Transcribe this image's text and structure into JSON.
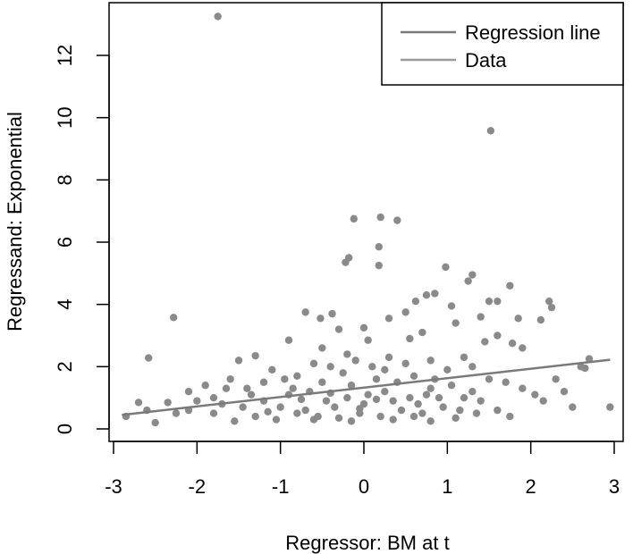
{
  "chart_data": {
    "type": "scatter",
    "title": "",
    "xlabel": "Regressor: BM at t",
    "ylabel": "Regressand: Exponential",
    "xlim": [
      -3,
      3
    ],
    "ylim": [
      0,
      13.5
    ],
    "xticks": [
      -3,
      -2,
      -1,
      0,
      1,
      2,
      3
    ],
    "yticks": [
      0,
      2,
      4,
      6,
      8,
      10,
      12
    ],
    "grid": false,
    "legend": {
      "placement": "top-right",
      "entries": [
        "Regression line",
        "Data"
      ]
    },
    "regression_line": {
      "x": [
        -2.9,
        2.95
      ],
      "y": [
        0.45,
        2.22
      ]
    },
    "series": [
      {
        "name": "Data",
        "color": "#8a8a8a",
        "points": [
          [
            -1.75,
            13.25
          ],
          [
            1.52,
            9.58
          ],
          [
            -0.12,
            6.75
          ],
          [
            0.2,
            6.8
          ],
          [
            0.4,
            6.7
          ],
          [
            0.18,
            5.85
          ],
          [
            0.18,
            5.25
          ],
          [
            -0.22,
            5.35
          ],
          [
            -0.18,
            5.5
          ],
          [
            -0.52,
            3.55
          ],
          [
            -0.38,
            3.7
          ],
          [
            -2.28,
            3.58
          ],
          [
            -2.58,
            2.28
          ],
          [
            -2.85,
            0.4
          ],
          [
            -2.7,
            0.85
          ],
          [
            -2.6,
            0.6
          ],
          [
            -2.5,
            0.2
          ],
          [
            -2.35,
            0.85
          ],
          [
            -2.25,
            0.5
          ],
          [
            0.98,
            5.2
          ],
          [
            1.3,
            4.95
          ],
          [
            1.25,
            4.75
          ],
          [
            0.85,
            4.35
          ],
          [
            0.75,
            4.3
          ],
          [
            0.62,
            4.1
          ],
          [
            0.5,
            3.75
          ],
          [
            1.05,
            3.95
          ],
          [
            1.5,
            4.1
          ],
          [
            1.6,
            4.1
          ],
          [
            1.75,
            4.6
          ],
          [
            1.85,
            3.55
          ],
          [
            2.22,
            4.1
          ],
          [
            2.25,
            3.9
          ],
          [
            2.12,
            3.5
          ],
          [
            1.78,
            2.75
          ],
          [
            2.6,
            2.0
          ],
          [
            2.65,
            1.95
          ],
          [
            2.7,
            2.25
          ],
          [
            2.95,
            0.7
          ],
          [
            2.5,
            0.7
          ],
          [
            2.3,
            1.6
          ],
          [
            2.4,
            1.2
          ],
          [
            -0.9,
            2.85
          ],
          [
            -0.7,
            3.75
          ],
          [
            -0.3,
            3.2
          ],
          [
            0.0,
            3.25
          ],
          [
            0.3,
            3.55
          ],
          [
            0.05,
            2.85
          ],
          [
            0.55,
            2.9
          ],
          [
            0.7,
            3.1
          ],
          [
            1.1,
            3.4
          ],
          [
            1.4,
            3.6
          ],
          [
            1.6,
            3.0
          ],
          [
            1.9,
            2.6
          ],
          [
            1.2,
            2.3
          ],
          [
            1.45,
            2.8
          ],
          [
            -0.5,
            2.6
          ],
          [
            -0.2,
            2.4
          ],
          [
            -1.5,
            2.2
          ],
          [
            -1.3,
            2.35
          ],
          [
            -1.1,
            1.9
          ],
          [
            -1.6,
            1.6
          ],
          [
            -1.9,
            1.4
          ],
          [
            -2.1,
            1.2
          ],
          [
            -1.8,
            1.0
          ],
          [
            -2.0,
            0.9
          ],
          [
            -1.4,
            1.3
          ],
          [
            -1.2,
            1.5
          ],
          [
            -0.95,
            1.6
          ],
          [
            -0.8,
            1.7
          ],
          [
            -0.6,
            2.1
          ],
          [
            -0.4,
            2.0
          ],
          [
            -0.1,
            2.2
          ],
          [
            0.1,
            2.0
          ],
          [
            0.3,
            2.3
          ],
          [
            0.5,
            2.1
          ],
          [
            0.8,
            2.2
          ],
          [
            1.0,
            1.9
          ],
          [
            1.3,
            2.0
          ],
          [
            1.5,
            1.6
          ],
          [
            1.7,
            1.5
          ],
          [
            1.9,
            1.3
          ],
          [
            2.05,
            1.1
          ],
          [
            2.15,
            0.9
          ],
          [
            1.75,
            0.4
          ],
          [
            1.6,
            0.6
          ],
          [
            1.4,
            0.9
          ],
          [
            1.2,
            1.0
          ],
          [
            0.95,
            0.7
          ],
          [
            0.7,
            0.5
          ],
          [
            0.45,
            0.6
          ],
          [
            0.2,
            0.4
          ],
          [
            -0.05,
            0.5
          ],
          [
            -0.3,
            0.35
          ],
          [
            -0.55,
            0.4
          ],
          [
            -0.8,
            0.5
          ],
          [
            -1.05,
            0.3
          ],
          [
            -1.3,
            0.4
          ],
          [
            -1.55,
            0.25
          ],
          [
            -1.8,
            0.5
          ],
          [
            -2.1,
            0.6
          ],
          [
            -1.7,
            0.8
          ],
          [
            -1.45,
            0.7
          ],
          [
            -1.2,
            0.9
          ],
          [
            -0.9,
            1.1
          ],
          [
            -0.65,
            1.2
          ],
          [
            -0.45,
            0.9
          ],
          [
            -0.2,
            1.0
          ],
          [
            0.05,
            1.1
          ],
          [
            0.25,
            1.2
          ],
          [
            0.55,
            1.0
          ],
          [
            0.8,
            1.3
          ],
          [
            1.05,
            1.4
          ],
          [
            1.3,
            1.2
          ],
          [
            -0.7,
            0.6
          ],
          [
            -0.35,
            0.7
          ],
          [
            0.0,
            0.8
          ],
          [
            0.35,
            0.9
          ],
          [
            0.65,
            0.8
          ],
          [
            0.9,
            1.0
          ],
          [
            1.15,
            0.6
          ],
          [
            0.4,
            1.5
          ],
          [
            0.15,
            1.6
          ],
          [
            -0.15,
            1.4
          ],
          [
            -0.5,
            1.5
          ],
          [
            -0.85,
            1.3
          ],
          [
            0.6,
            1.7
          ],
          [
            0.85,
            1.6
          ],
          [
            -0.25,
            1.8
          ],
          [
            0.25,
            1.9
          ],
          [
            -1.0,
            0.7
          ],
          [
            -0.6,
            0.3
          ],
          [
            -0.15,
            0.25
          ],
          [
            0.35,
            0.3
          ],
          [
            0.8,
            0.25
          ],
          [
            1.1,
            0.35
          ],
          [
            -1.35,
            1.1
          ],
          [
            -1.65,
            1.3
          ],
          [
            -0.75,
            0.95
          ],
          [
            -0.05,
            0.65
          ],
          [
            0.6,
            0.4
          ],
          [
            1.35,
            0.5
          ],
          [
            -0.4,
            1.15
          ],
          [
            0.15,
            0.95
          ],
          [
            0.75,
            1.1
          ],
          [
            -1.15,
            0.55
          ]
        ]
      }
    ]
  }
}
